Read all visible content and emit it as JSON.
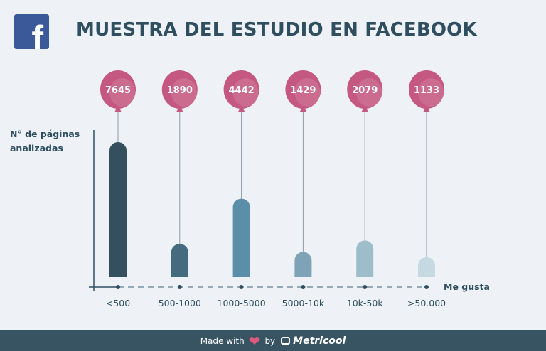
{
  "header": {
    "logo_letter": "f",
    "title": "MUESTRA DEL ESTUDIO EN FACEBOOK"
  },
  "chart_data": {
    "type": "bar",
    "title": "MUESTRA DEL ESTUDIO EN FACEBOOK",
    "ylabel": "N° de páginas\nanalizadas",
    "xlabel": "Me gusta",
    "categories": [
      "<500",
      "500-1000",
      "1000-5000",
      "5000-10k",
      "10k-50k",
      ">50.000"
    ],
    "values": [
      7645,
      1890,
      4442,
      1429,
      2079,
      1133
    ],
    "data_labels": [
      "7645",
      "1890",
      "4442",
      "1429",
      "2079",
      "1133"
    ],
    "ylim": [
      0,
      7645
    ],
    "grid": false,
    "legend": "none",
    "bar_colors": [
      "#34505f",
      "#456b7e",
      "#5a8ea9",
      "#7ea3b7",
      "#9ebdca",
      "#c5d9e2"
    ],
    "balloon_color": "#c45880"
  },
  "footer": {
    "made_with": "Made with",
    "by": "by",
    "brand": "Metricool"
  }
}
